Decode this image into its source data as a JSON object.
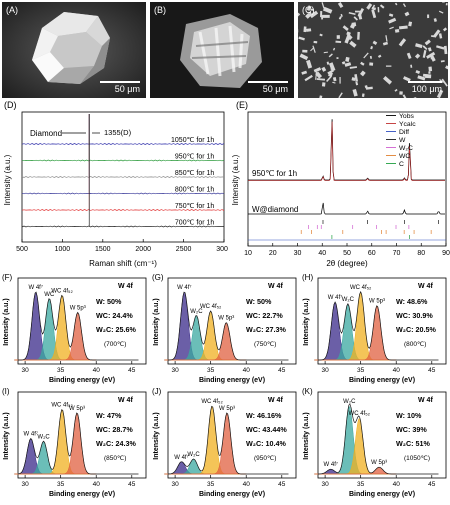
{
  "sem": [
    {
      "label": "(A)",
      "scale": "50 μm"
    },
    {
      "label": "(B)",
      "scale": "50 μm"
    },
    {
      "label": "(C)",
      "scale": "100 μm"
    }
  ],
  "raman": {
    "label": "(D)",
    "ylabel": "Intensity (a.u.)",
    "xlabel": "Raman shift (cm⁻¹)",
    "annot_diamond": "Diamond",
    "annot_peak": "1355(D)",
    "xticks": [
      "500",
      "1000",
      "1500",
      "2000",
      "2500",
      "3000"
    ],
    "traces": [
      {
        "name": "1050℃ for 1h",
        "color": "#2a2aa8"
      },
      {
        "name": "950℃ for 1h",
        "color": "#2a9a3a"
      },
      {
        "name": "850℃ for 1h",
        "color": "#8a8a8a"
      },
      {
        "name": "800℃ for 1h",
        "color": "#3a3a9a"
      },
      {
        "name": "750℃ for 1h",
        "color": "#e03030"
      },
      {
        "name": "700℃ for 1h",
        "color": "#222222"
      }
    ]
  },
  "xrd": {
    "label": "(E)",
    "ylabel": "Intensity (a.u.)",
    "xlabel": "2θ (degree)",
    "top_label": "950℃ for 1h",
    "bottom_label": "W@diamond",
    "xticks": [
      "10",
      "20",
      "30",
      "40",
      "50",
      "60",
      "70",
      "80",
      "90"
    ],
    "legend": [
      {
        "name": "Yobs",
        "color": "#000000"
      },
      {
        "name": "Ycalc",
        "color": "#c03030"
      },
      {
        "name": "Diff",
        "color": "#3050c0"
      },
      {
        "name": "W",
        "color": "#1a1a1a"
      },
      {
        "name": "W₂C",
        "color": "#d060d0"
      },
      {
        "name": "WC",
        "color": "#e08030"
      },
      {
        "name": "C",
        "color": "#20a040"
      }
    ]
  },
  "xps": [
    {
      "label": "(F)",
      "title": "W 4f",
      "w": "W: 50%",
      "wc": "WC: 24.4%",
      "w2c": "W₂C: 25.6%",
      "temp": "(700℃)",
      "peaks": [
        "W 4f⁷",
        "WC",
        "WC 4f₅₂",
        "W 5p³"
      ]
    },
    {
      "label": "(G)",
      "title": "W 4f",
      "w": "W: 50%",
      "wc": "WC: 22.7%",
      "w2c": "W₂C: 27.3%",
      "temp": "(750℃)",
      "peaks": [
        "W 4f⁷",
        "W₂C",
        "WC 4f₅₂",
        "W 5p³"
      ]
    },
    {
      "label": "(H)",
      "title": "W 4f",
      "w": "W: 48.6%",
      "wc": "WC: 30.9%",
      "w2c": "W₂C: 20.5%",
      "temp": "(800℃)",
      "peaks": [
        "W 4f⁷",
        "W₂C",
        "WC 4f₅₂",
        "W 5p³"
      ]
    },
    {
      "label": "(I)",
      "title": "W 4f",
      "w": "W: 47%",
      "wc": "WC: 28.7%",
      "w2c": "W₂C: 24.3%",
      "temp": "(850℃)",
      "peaks": [
        "W 4f⁷",
        "W₂C",
        "WC 4f₅₂",
        "W 5p³"
      ]
    },
    {
      "label": "(J)",
      "title": "W 4f",
      "w": "W: 46.16%",
      "wc": "WC: 43.44%",
      "w2c": "W₂C: 10.4%",
      "temp": "(950℃)",
      "peaks": [
        "W 4f⁷",
        "W₂C",
        "WC 4f₅₂",
        "W 5p³"
      ]
    },
    {
      "label": "(K)",
      "title": "W 4f",
      "w": "W: 10%",
      "wc": "WC: 39%",
      "w2c": "W₂C: 51%",
      "temp": "(1050℃)",
      "peaks": [
        "W 4f⁷",
        "W₂C",
        "WC 4f₅₂",
        "W 5p³"
      ]
    }
  ],
  "xps_axes": {
    "ylabel": "Intensity (a.u.)",
    "xlabel": "Binding energy (eV)",
    "xticks": [
      "30",
      "35",
      "40",
      "45"
    ]
  },
  "colors": {
    "w": "#3a2a8a",
    "w2c": "#3aa8a0",
    "wc": "#f0b020",
    "w5p": "#e06040",
    "fit": "#1a1a1a"
  }
}
